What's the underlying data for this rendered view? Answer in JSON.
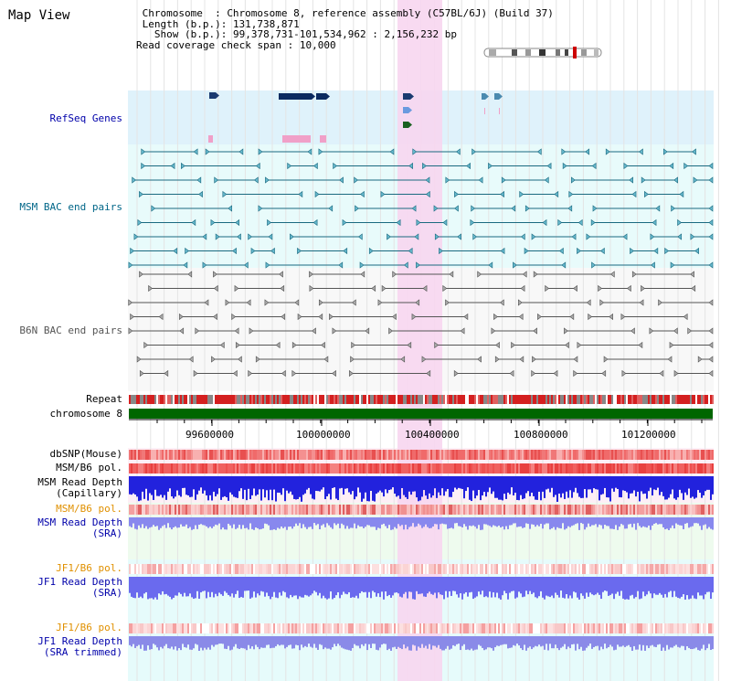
{
  "view_title": "Map View",
  "info": {
    "chromosome_label": "Chromosome",
    "chromosome_value": "Chromosome 8, reference assembly (C57BL/6J) (Build 37)",
    "length_label": "Length (b.p.)",
    "length_value": "131,738,871",
    "show_label": "Show (b.p.)",
    "show_value": "99,378,731-101,534,962 : 2,156,232 bp",
    "coverage_label": "Read coverage check span",
    "coverage_value": "10,000"
  },
  "tracks": {
    "refseq": "RefSeq Genes",
    "msm_bac": "MSM BAC end pairs",
    "b6n_bac": "B6N BAC end pairs",
    "repeat": "Repeat",
    "chromosome": "chromosome 8",
    "dbsnp": "dbSNP(Mouse)",
    "msm_b6_pol_1": "MSM/B6 pol.",
    "msm_depth_cap_1": "MSM Read Depth",
    "msm_depth_cap_2": "(Capillary)",
    "msm_b6_pol_2": "MSM/B6 pol.",
    "msm_depth_sra_1": "MSM Read Depth",
    "msm_depth_sra_2": "(SRA)",
    "jf1_b6_pol_1": "JF1/B6 pol.",
    "jf1_depth_sra_1": "JF1 Read Depth",
    "jf1_depth_sra_2": "(SRA)",
    "jf1_b6_pol_2": "JF1/B6 pol.",
    "jf1_depth_trim_1": "JF1 Read Depth",
    "jf1_depth_trim_2": "(SRA trimmed)"
  },
  "axis_ticks": [
    "99600000",
    "100000000",
    "100400000",
    "100800000",
    "101200000"
  ],
  "colors": {
    "label_blue": "#0000aa",
    "label_orange": "#e09000",
    "highlight": "#f7d6f0",
    "chromosome_bar": "#006600",
    "msm_bac_line": "#1a6a80",
    "b6n_bac_line": "#666666",
    "refseq_bg": "#dff2fb",
    "track_bg": "#e9fbfb"
  }
}
